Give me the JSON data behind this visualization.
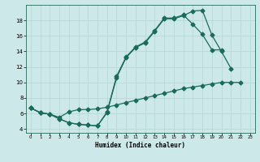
{
  "xlabel": "Humidex (Indice chaleur)",
  "bg_color": "#cce8e8",
  "grid_color": "#b8d8d8",
  "line_color": "#1a6b5a",
  "xlim": [
    -0.5,
    23.5
  ],
  "ylim": [
    3.5,
    20.0
  ],
  "xticks": [
    0,
    1,
    2,
    3,
    4,
    5,
    6,
    7,
    8,
    9,
    10,
    11,
    12,
    13,
    14,
    15,
    16,
    17,
    18,
    19,
    20,
    21,
    22,
    23
  ],
  "yticks": [
    4,
    6,
    8,
    10,
    12,
    14,
    16,
    18
  ],
  "curve1_x": [
    0,
    1,
    2,
    3,
    4,
    5,
    6,
    7,
    8,
    9,
    10,
    11,
    12,
    13,
    14,
    15,
    16,
    17,
    18,
    19,
    20,
    21
  ],
  "curve1_y": [
    6.7,
    6.1,
    5.9,
    5.3,
    4.8,
    4.6,
    4.5,
    4.4,
    6.1,
    10.6,
    13.2,
    14.5,
    15.1,
    16.6,
    18.2,
    18.2,
    18.6,
    19.2,
    19.3,
    16.1,
    14.0,
    11.8
  ],
  "curve2_x": [
    0,
    1,
    2,
    3,
    4,
    5,
    6,
    7,
    8,
    9,
    10,
    11,
    12,
    13,
    14,
    15,
    16,
    17,
    18,
    19,
    20
  ],
  "curve2_y": [
    6.7,
    6.1,
    5.9,
    5.3,
    4.8,
    4.6,
    4.5,
    4.4,
    6.2,
    10.8,
    13.3,
    14.6,
    15.2,
    16.7,
    18.3,
    18.3,
    18.7,
    17.5,
    16.2,
    14.2,
    14.2
  ],
  "curve3_x": [
    0,
    1,
    2,
    3,
    4,
    5,
    6,
    7,
    8,
    9,
    10,
    11,
    12,
    13,
    14,
    15,
    16,
    17,
    18,
    19,
    20,
    21,
    22
  ],
  "curve3_y": [
    6.7,
    6.1,
    5.9,
    5.5,
    6.2,
    6.5,
    6.5,
    6.6,
    6.8,
    7.1,
    7.4,
    7.7,
    8.0,
    8.3,
    8.6,
    8.9,
    9.2,
    9.4,
    9.6,
    9.8,
    10.0,
    10.0,
    10.0
  ]
}
